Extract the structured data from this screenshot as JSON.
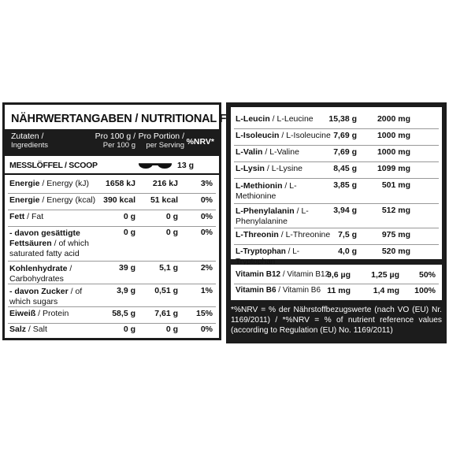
{
  "left": {
    "title": "NÄHRWERTANGABEN / NUTRITIONAL FACTS",
    "header": {
      "ingredients_de": "Zutaten /",
      "ingredients_en": "Ingredients",
      "per100_de": "Pro 100 g /",
      "per100_en": "Per 100 g",
      "portion_de": "Pro Portion /",
      "portion_en": "per Serving",
      "nrv": "%NRV*"
    },
    "scoop": {
      "label": "MESSLÖFFEL / SCOOP",
      "amount": "13 g",
      "icon": "scoop-icon"
    },
    "rows": [
      {
        "de": "Energie",
        "en": "Energy (kJ)",
        "per100": "1658 kJ",
        "portion": "216 kJ",
        "nrv": "3%"
      },
      {
        "de": "Energie",
        "en": "Energy (kcal)",
        "per100": "390 kcal",
        "portion": "51 kcal",
        "nrv": "0%"
      },
      {
        "de": "Fett",
        "en": "Fat",
        "per100": "0 g",
        "portion": "0 g",
        "nrv": "0%"
      },
      {
        "de": "- davon gesättigte Fettsäuren",
        "en": "of which saturated fatty acid",
        "per100": "0 g",
        "portion": "0 g",
        "nrv": "0%"
      },
      {
        "de": "Kohlenhydrate",
        "en": "Carbohydrates",
        "per100": "39 g",
        "portion": "5,1 g",
        "nrv": "2%"
      },
      {
        "de": "- davon Zucker",
        "en": "of which sugars",
        "per100": "3,9 g",
        "portion": "0,51 g",
        "nrv": "1%"
      },
      {
        "de": "Eiweiß",
        "en": "Protein",
        "per100": "58,5 g",
        "portion": "7,61 g",
        "nrv": "15%"
      },
      {
        "de": "Salz",
        "en": "Salt",
        "per100": "0 g",
        "portion": "0 g",
        "nrv": "0%"
      }
    ]
  },
  "right": {
    "amino_rows": [
      {
        "de": "L-Leucin",
        "en": "L-Leucine",
        "per100": "15,38 g",
        "portion": "2000 mg"
      },
      {
        "de": "L-Isoleucin",
        "en": "L-Isoleucine",
        "per100": "7,69 g",
        "portion": "1000 mg"
      },
      {
        "de": "L-Valin",
        "en": "L-Valine",
        "per100": "7,69 g",
        "portion": "1000 mg"
      },
      {
        "de": "L-Lysin",
        "en": "L-Lysine",
        "per100": "8,45 g",
        "portion": "1099 mg"
      },
      {
        "de": "L-Methionin",
        "en": "L-Methionine",
        "per100": "3,85 g",
        "portion": "501 mg"
      },
      {
        "de": "L-Phenylalanin",
        "en": "L-Phenylalanine",
        "per100": "3,94 g",
        "portion": "512 mg"
      },
      {
        "de": "L-Threonin",
        "en": "L-Threonine",
        "per100": "7,5 g",
        "portion": "975 mg"
      },
      {
        "de": "L-Tryptophan",
        "en": "L-Tryptophan",
        "per100": "4,0 g",
        "portion": "520 mg"
      }
    ],
    "vitamin_rows": [
      {
        "de": "Vitamin B12",
        "en": "Vitamin B12",
        "per100": "9,6 µg",
        "portion": "1,25 µg",
        "nrv": "50%"
      },
      {
        "de": "Vitamin B6",
        "en": "Vitamin B6",
        "per100": "11 mg",
        "portion": "1,4 mg",
        "nrv": "100%"
      }
    ],
    "footnote": "*%NRV = % der Nährstoffbezugswerte (nach VO (EU) Nr. 1169/2011) / *%NRV = % of nutrient reference values (according to Regulation (EU) No. 1169/2011)"
  }
}
